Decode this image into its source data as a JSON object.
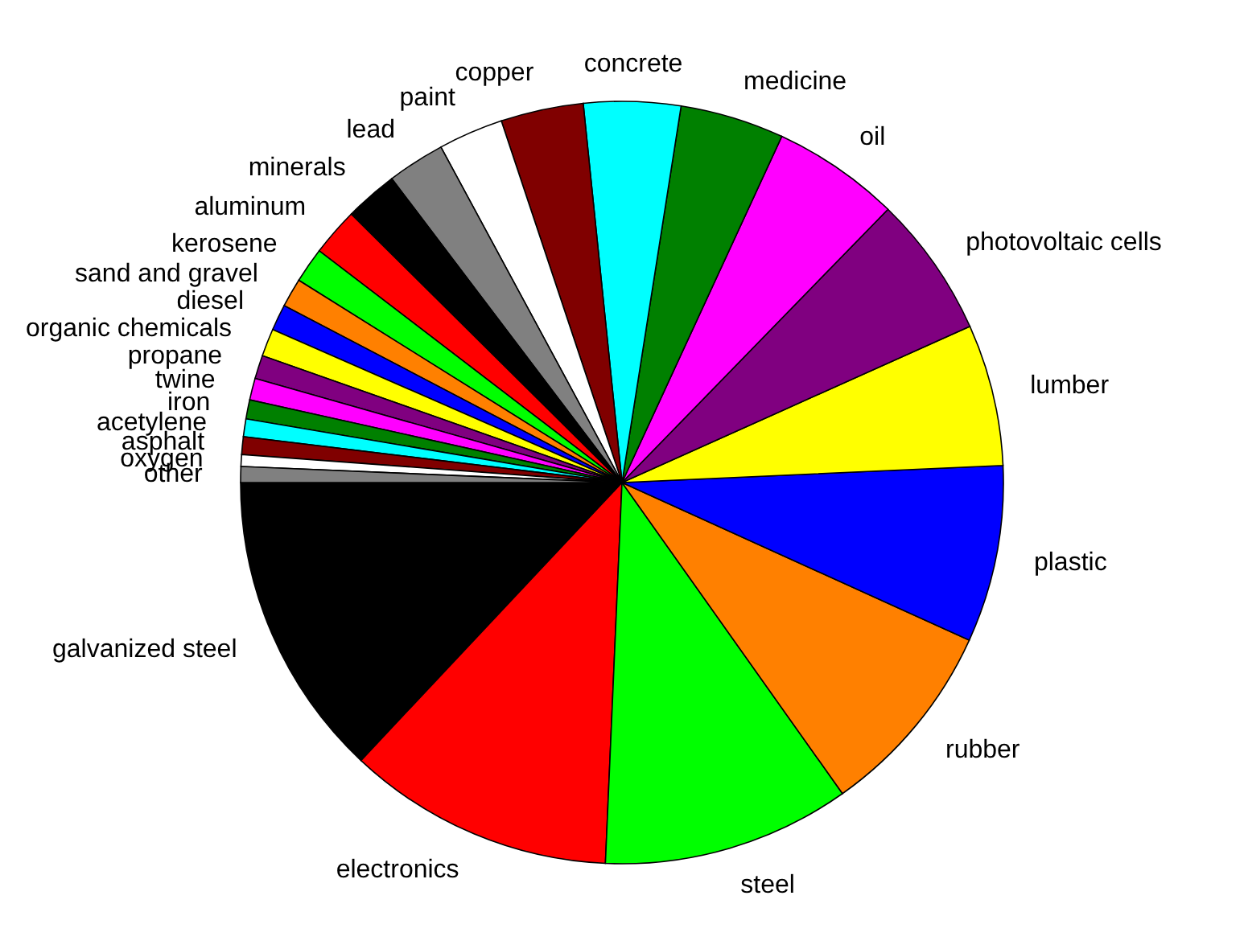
{
  "chart_data": {
    "type": "pie",
    "categories": [
      "galvanized steel",
      "electronics",
      "steel",
      "rubber",
      "plastic",
      "lumber",
      "photovoltaic cells",
      "oil",
      "medicine",
      "concrete",
      "copper",
      "paint",
      "lead",
      "minerals",
      "aluminum",
      "kerosene",
      "sand and gravel",
      "diesel",
      "organic chemicals",
      "propane",
      "twine",
      "iron",
      "acetylene",
      "asphalt",
      "oxygen",
      "other"
    ],
    "values": [
      13.0,
      11.3,
      10.5,
      8.4,
      7.5,
      6.0,
      6.0,
      5.4,
      4.4,
      4.1,
      3.5,
      2.75,
      2.44,
      2.25,
      2.03,
      1.5,
      1.22,
      1.11,
      1.17,
      1.0,
      0.92,
      0.81,
      0.75,
      0.75,
      0.5,
      0.67
    ],
    "colors": [
      "#000000",
      "#ff0000",
      "#00ff00",
      "#ff8000",
      "#0000ff",
      "#ffff00",
      "#800080",
      "#ff00ff",
      "#008000",
      "#00ffff",
      "#800000",
      "#ffffff",
      "#808080",
      "#000000",
      "#ff0000",
      "#00ff00",
      "#ff8000",
      "#0000ff",
      "#ffff00",
      "#800080",
      "#ff00ff",
      "#008000",
      "#00ffff",
      "#800000",
      "#ffffff",
      "#808080"
    ]
  }
}
